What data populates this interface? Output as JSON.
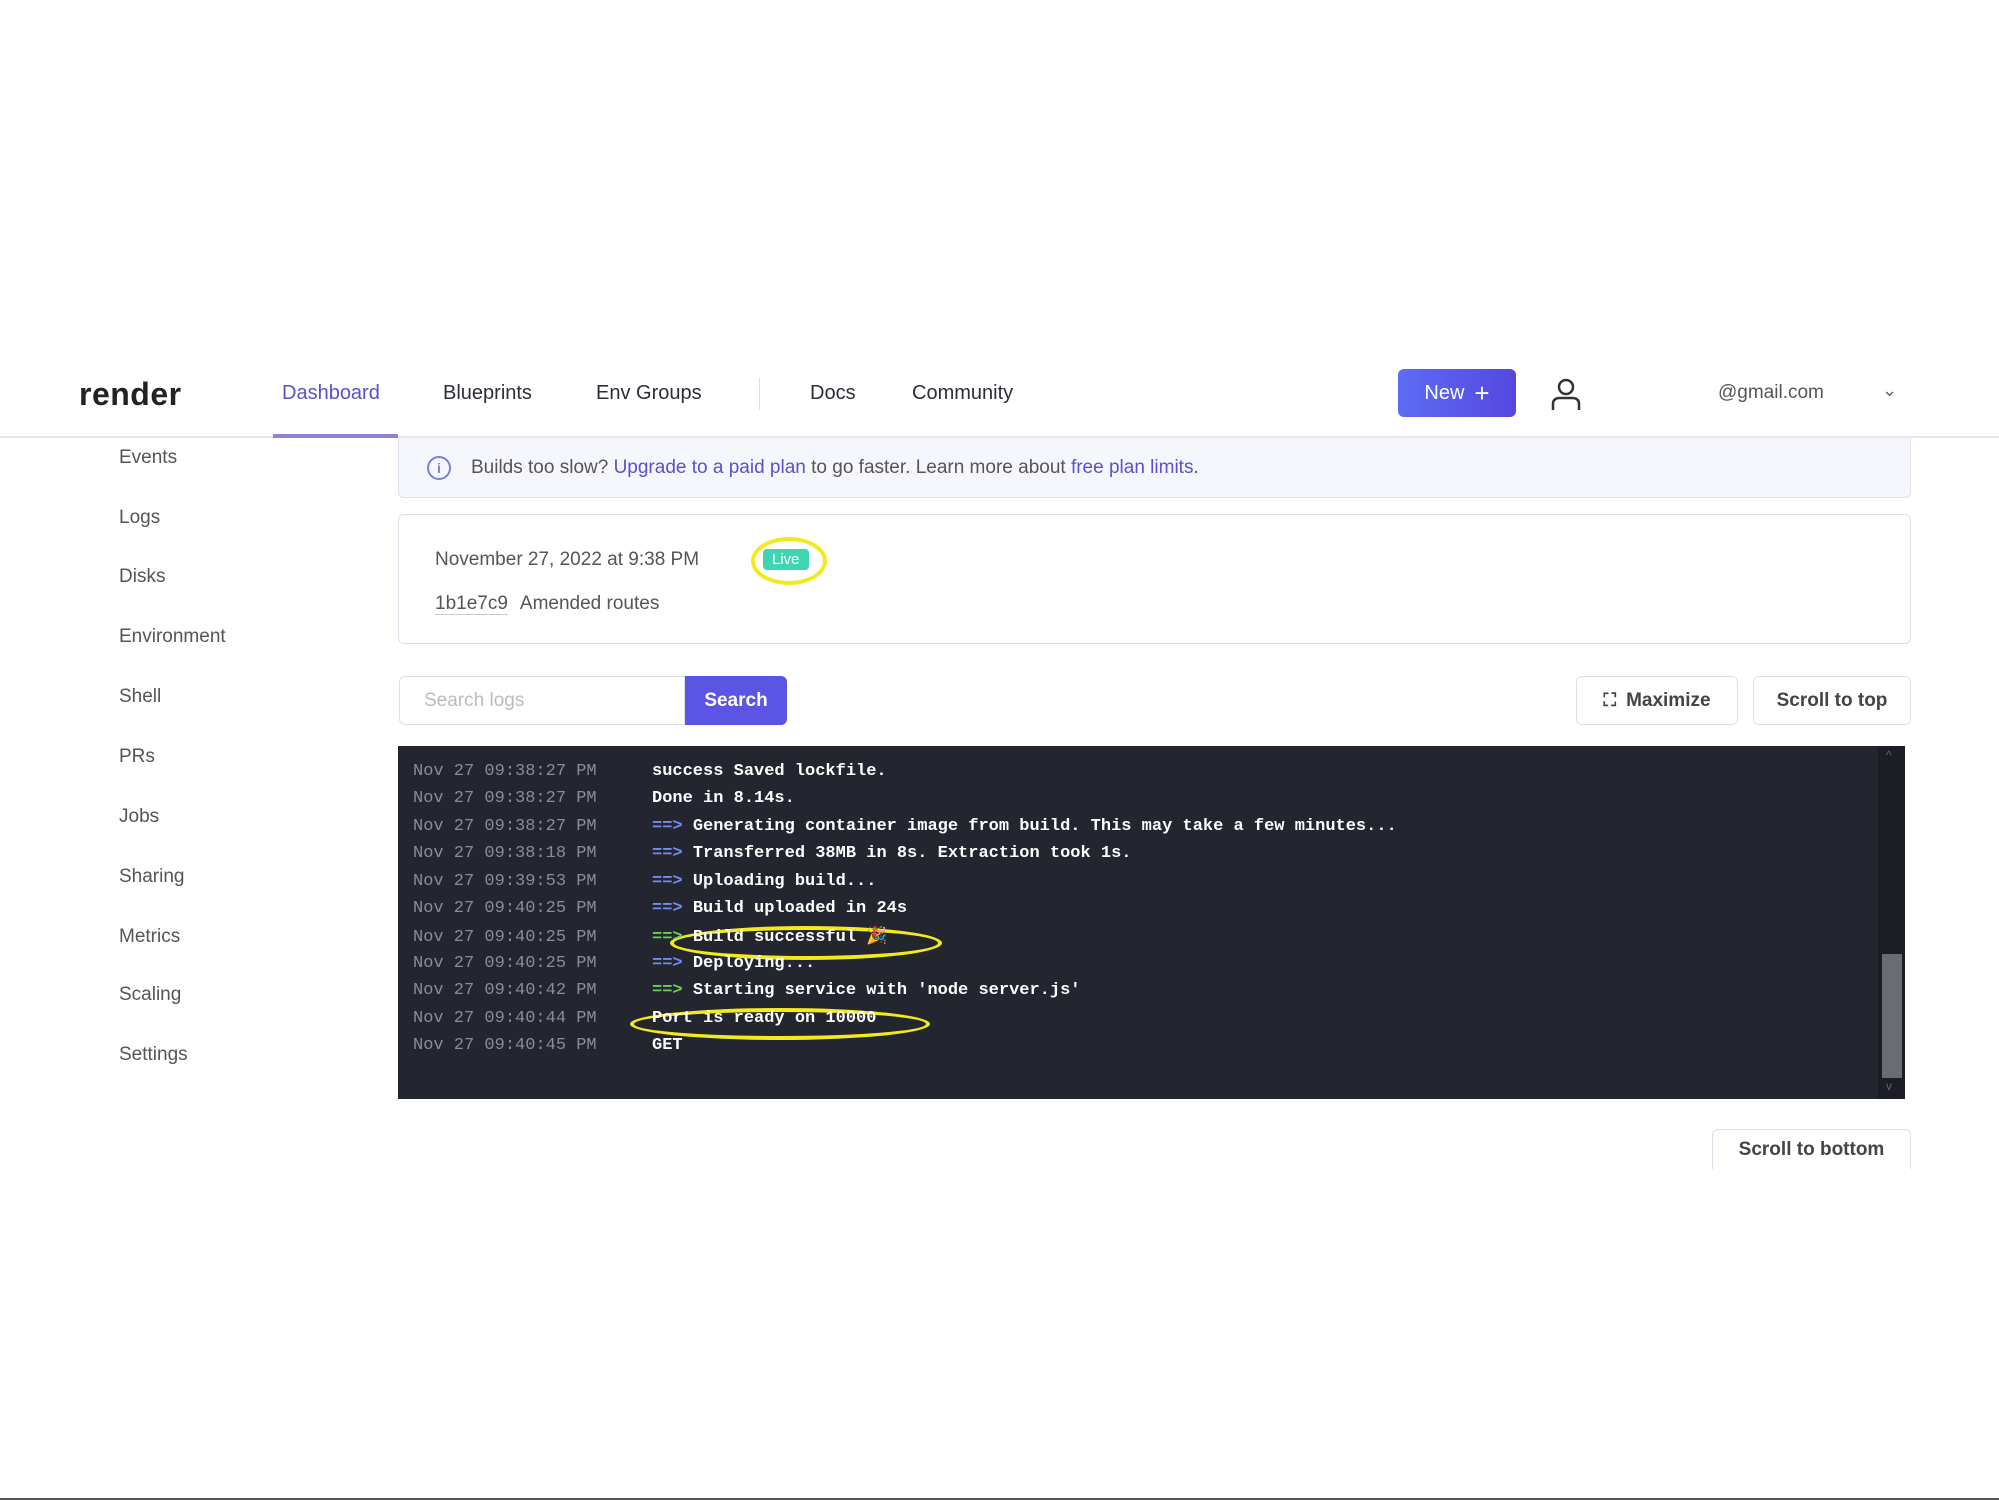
{
  "nav": {
    "logo": "render",
    "links": [
      "Dashboard",
      "Blueprints",
      "Env Groups",
      "Docs",
      "Community"
    ],
    "active": "Dashboard",
    "new_label": "New",
    "email": "@gmail.com",
    "accent": "#5a4fcf"
  },
  "sidebar": [
    "Events",
    "Logs",
    "Disks",
    "Environment",
    "Shell",
    "PRs",
    "Jobs",
    "Sharing",
    "Metrics",
    "Scaling",
    "Settings"
  ],
  "banner": {
    "t1": "Builds too slow? ",
    "l1": "Upgrade to a paid plan",
    "t2": " to go faster. Learn more about ",
    "l2": "free plan limits",
    "t3": "."
  },
  "deploy": {
    "date": "November 27, 2022 at 9:38 PM",
    "status": "Live",
    "hash": "1b1e7c9",
    "message": "Amended routes"
  },
  "logs": {
    "search_placeholder": "Search logs",
    "search_label": "Search",
    "maximize_label": "Maximize",
    "scroll_top_label": "Scroll to top",
    "scroll_bottom_label": "Scroll to bottom",
    "lines": [
      {
        "ts": "Nov 27 09:38:27 PM",
        "arrow": "",
        "msg": "success Saved lockfile."
      },
      {
        "ts": "Nov 27 09:38:27 PM",
        "arrow": "",
        "msg": "Done in 8.14s."
      },
      {
        "ts": "Nov 27 09:38:27 PM",
        "arrow": "==>",
        "msg": "Generating container image from build. This may take a few minutes..."
      },
      {
        "ts": "Nov 27 09:38:18 PM",
        "arrow": "==>",
        "msg": "Transferred 38MB in 8s. Extraction took 1s."
      },
      {
        "ts": "Nov 27 09:39:53 PM",
        "arrow": "==>",
        "msg": "Uploading build..."
      },
      {
        "ts": "Nov 27 09:40:25 PM",
        "arrow": "==>",
        "msg": "Build uploaded in 24s"
      },
      {
        "ts": "Nov 27 09:40:25 PM",
        "arrow": "==>",
        "msg": "Build successful 🎉",
        "green": true
      },
      {
        "ts": "Nov 27 09:40:25 PM",
        "arrow": "==>",
        "msg": "Deploying..."
      },
      {
        "ts": "Nov 27 09:40:42 PM",
        "arrow": "==>",
        "msg": "Starting service with 'node server.js'",
        "green": true
      },
      {
        "ts": "Nov 27 09:40:44 PM",
        "arrow": "",
        "msg": "Port is ready on 10000"
      },
      {
        "ts": "Nov 27 09:40:45 PM",
        "arrow": "",
        "msg": "GET"
      }
    ]
  }
}
